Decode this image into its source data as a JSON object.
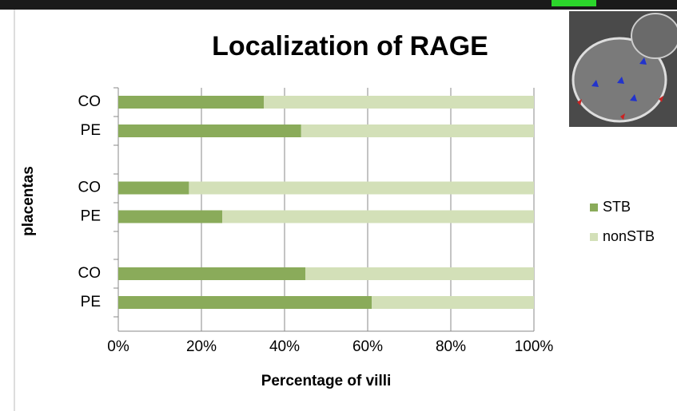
{
  "chart_data": {
    "type": "stacked-bar-horizontal",
    "title": "Localization of RAGE",
    "x_label": "Percentage of villi",
    "y_label": "placentas",
    "categories": [
      "CO",
      "PE",
      "CO",
      "PE",
      "CO",
      "PE"
    ],
    "series": [
      {
        "name": "STB",
        "color": "#8aab5a",
        "values": [
          35,
          44,
          17,
          25,
          45,
          61
        ]
      },
      {
        "name": "nonSTB",
        "color": "#d3e0b8",
        "values": [
          65,
          56,
          83,
          75,
          55,
          39
        ]
      }
    ],
    "xlim": [
      0,
      100
    ],
    "xticks": [
      {
        "value": 0,
        "label": "0%"
      },
      {
        "value": 20,
        "label": "20%"
      },
      {
        "value": 40,
        "label": "40%"
      },
      {
        "value": 60,
        "label": "60%"
      },
      {
        "value": 80,
        "label": "80%"
      },
      {
        "value": 100,
        "label": "100%"
      }
    ],
    "grid": true,
    "legend": "right"
  }
}
